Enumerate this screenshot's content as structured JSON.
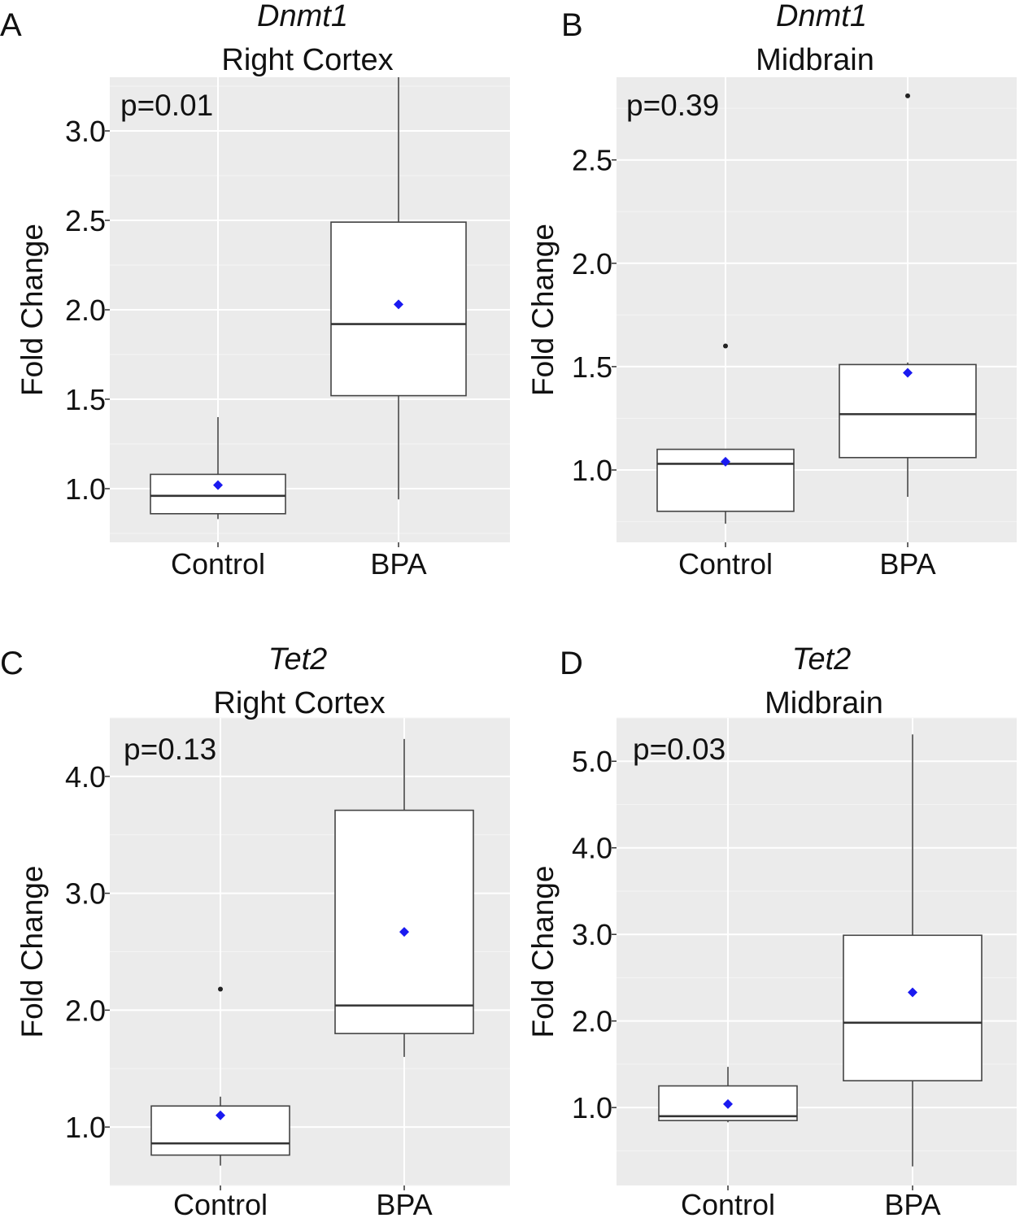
{
  "chart_data": [
    {
      "panel": "A",
      "type": "box",
      "gene": "Dnmt1",
      "region": "Right Cortex",
      "p_value": "p=0.01",
      "ylabel": "Fold Change",
      "ylim": [
        0.7,
        3.3
      ],
      "yticks": [
        1.0,
        1.5,
        2.0,
        2.5,
        3.0
      ],
      "ytick_labels": [
        "1.0",
        "1.5",
        "2.0",
        "2.5",
        "3.0"
      ],
      "categories": [
        "Control",
        "BPA"
      ],
      "boxes": [
        {
          "min": 0.83,
          "q1": 0.86,
          "median": 0.96,
          "q3": 1.08,
          "max": 1.4,
          "mean": 1.02,
          "outliers": []
        },
        {
          "min": 0.94,
          "q1": 1.52,
          "median": 1.92,
          "q3": 2.49,
          "max": 3.3,
          "mean": 2.03,
          "outliers": []
        }
      ]
    },
    {
      "panel": "B",
      "type": "box",
      "gene": "Dnmt1",
      "region": "Midbrain",
      "p_value": "p=0.39",
      "ylabel": "Fold Change",
      "ylim": [
        0.65,
        2.9
      ],
      "yticks": [
        1.0,
        1.5,
        2.0,
        2.5
      ],
      "ytick_labels": [
        "1.0",
        "1.5",
        "2.0",
        "2.5"
      ],
      "categories": [
        "Control",
        "BPA"
      ],
      "boxes": [
        {
          "min": 0.74,
          "q1": 0.8,
          "median": 1.03,
          "q3": 1.1,
          "max": 1.1,
          "mean": 1.04,
          "outliers": [
            1.6
          ]
        },
        {
          "min": 0.87,
          "q1": 1.06,
          "median": 1.27,
          "q3": 1.51,
          "max": 1.52,
          "mean": 1.47,
          "outliers": [
            2.81
          ]
        }
      ]
    },
    {
      "panel": "C",
      "type": "box",
      "gene": "Tet2",
      "region": "Right Cortex",
      "p_value": "p=0.13",
      "ylabel": "Fold Change",
      "ylim": [
        0.5,
        4.5
      ],
      "yticks": [
        1.0,
        2.0,
        3.0,
        4.0
      ],
      "ytick_labels": [
        "1.0",
        "2.0",
        "3.0",
        "4.0"
      ],
      "categories": [
        "Control",
        "BPA"
      ],
      "boxes": [
        {
          "min": 0.67,
          "q1": 0.76,
          "median": 0.86,
          "q3": 1.18,
          "max": 1.26,
          "mean": 1.1,
          "outliers": [
            2.18
          ]
        },
        {
          "min": 1.6,
          "q1": 1.8,
          "median": 2.04,
          "q3": 3.71,
          "max": 4.32,
          "mean": 2.67,
          "outliers": []
        }
      ]
    },
    {
      "panel": "D",
      "type": "box",
      "gene": "Tet2",
      "region": "Midbrain",
      "p_value": "p=0.03",
      "ylabel": "Fold Change",
      "ylim": [
        0.1,
        5.5
      ],
      "yticks": [
        1.0,
        2.0,
        3.0,
        4.0,
        5.0
      ],
      "ytick_labels": [
        "1.0",
        "2.0",
        "3.0",
        "4.0",
        "5.0"
      ],
      "categories": [
        "Control",
        "BPA"
      ],
      "boxes": [
        {
          "min": 0.83,
          "q1": 0.85,
          "median": 0.9,
          "q3": 1.25,
          "max": 1.47,
          "mean": 1.04,
          "outliers": []
        },
        {
          "min": 0.32,
          "q1": 1.31,
          "median": 1.98,
          "q3": 2.99,
          "max": 5.31,
          "mean": 2.33,
          "outliers": []
        }
      ]
    }
  ],
  "colors": {
    "panel_bg": "#EBEBEB",
    "grid_major": "#FFFFFF",
    "grid_minor": "#F4F4F4",
    "box_fill": "#FFFFFF",
    "box_line": "#444444",
    "mean_marker": "#1A1AF0",
    "outlier": "#222222"
  }
}
